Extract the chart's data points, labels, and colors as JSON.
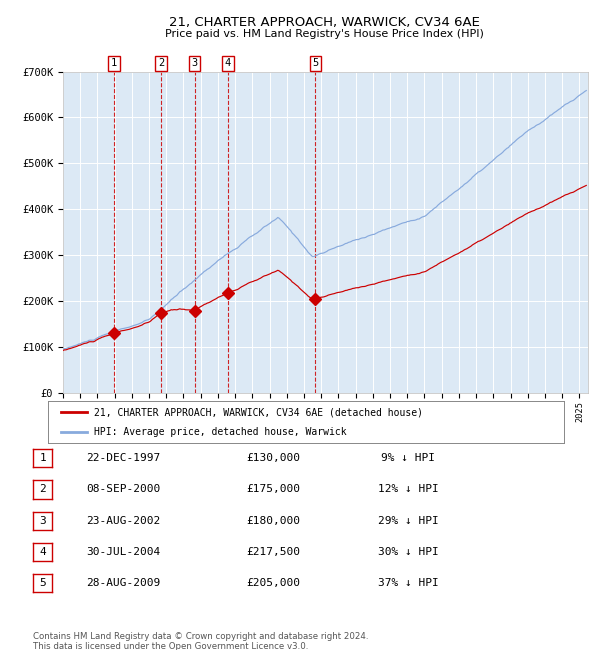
{
  "title": "21, CHARTER APPROACH, WARWICK, CV34 6AE",
  "subtitle": "Price paid vs. HM Land Registry's House Price Index (HPI)",
  "footnote": "Contains HM Land Registry data © Crown copyright and database right 2024.\nThis data is licensed under the Open Government Licence v3.0.",
  "plot_bg_color": "#dce9f5",
  "hpi_line_color": "#88aadd",
  "sale_line_color": "#cc0000",
  "vline_color": "#cc0000",
  "ylabel_values": [
    "£0",
    "£100K",
    "£200K",
    "£300K",
    "£400K",
    "£500K",
    "£600K",
    "£700K"
  ],
  "ylim": [
    0,
    700000
  ],
  "yticks": [
    0,
    100000,
    200000,
    300000,
    400000,
    500000,
    600000,
    700000
  ],
  "legend_entry1": "21, CHARTER APPROACH, WARWICK, CV34 6AE (detached house)",
  "legend_entry2": "HPI: Average price, detached house, Warwick",
  "sales": [
    {
      "num": 1,
      "date": "22-DEC-1997",
      "year": 1997.97,
      "price": 130000,
      "label": "1"
    },
    {
      "num": 2,
      "date": "08-SEP-2000",
      "year": 2000.69,
      "price": 175000,
      "label": "2"
    },
    {
      "num": 3,
      "date": "23-AUG-2002",
      "year": 2002.65,
      "price": 180000,
      "label": "3"
    },
    {
      "num": 4,
      "date": "30-JUL-2004",
      "year": 2004.58,
      "price": 217500,
      "label": "4"
    },
    {
      "num": 5,
      "date": "28-AUG-2009",
      "year": 2009.66,
      "price": 205000,
      "label": "5"
    }
  ],
  "table_rows": [
    [
      "1",
      "22-DEC-1997",
      "£130,000",
      "9% ↓ HPI"
    ],
    [
      "2",
      "08-SEP-2000",
      "£175,000",
      "12% ↓ HPI"
    ],
    [
      "3",
      "23-AUG-2002",
      "£180,000",
      "29% ↓ HPI"
    ],
    [
      "4",
      "30-JUL-2004",
      "£217,500",
      "30% ↓ HPI"
    ],
    [
      "5",
      "28-AUG-2009",
      "£205,000",
      "37% ↓ HPI"
    ]
  ]
}
